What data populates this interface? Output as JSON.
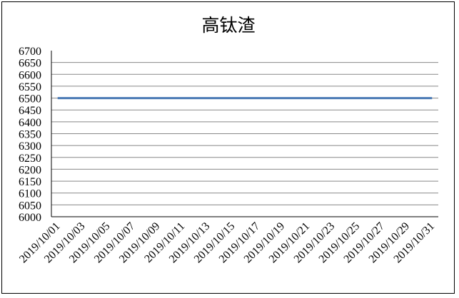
{
  "chart_data": {
    "type": "line",
    "title": "高钛渣",
    "xlabel": "",
    "ylabel": "",
    "ylim": [
      6000,
      6700
    ],
    "ytick_step": 50,
    "grid": true,
    "legend": "none",
    "x": [
      "2019/10/01",
      "2019/10/02",
      "2019/10/03",
      "2019/10/04",
      "2019/10/05",
      "2019/10/06",
      "2019/10/07",
      "2019/10/08",
      "2019/10/09",
      "2019/10/10",
      "2019/10/11",
      "2019/10/12",
      "2019/10/13",
      "2019/10/14",
      "2019/10/15",
      "2019/10/16",
      "2019/10/17",
      "2019/10/18",
      "2019/10/19",
      "2019/10/20",
      "2019/10/21",
      "2019/10/22",
      "2019/10/23",
      "2019/10/24",
      "2019/10/25",
      "2019/10/26",
      "2019/10/27",
      "2019/10/28",
      "2019/10/29",
      "2019/10/30",
      "2019/10/31"
    ],
    "x_tick_labels": [
      "2019/10/01",
      "2019/10/03",
      "2019/10/05",
      "2019/10/07",
      "2019/10/09",
      "2019/10/11",
      "2019/10/13",
      "2019/10/15",
      "2019/10/17",
      "2019/10/19",
      "2019/10/21",
      "2019/10/23",
      "2019/10/25",
      "2019/10/27",
      "2019/10/29",
      "2019/10/31"
    ],
    "series": [
      {
        "values": [
          6500,
          6500,
          6500,
          6500,
          6500,
          6500,
          6500,
          6500,
          6500,
          6500,
          6500,
          6500,
          6500,
          6500,
          6500,
          6500,
          6500,
          6500,
          6500,
          6500,
          6500,
          6500,
          6500,
          6500,
          6500,
          6500,
          6500,
          6500,
          6500,
          6500,
          6500
        ],
        "color": "#4a7ab5"
      }
    ]
  }
}
